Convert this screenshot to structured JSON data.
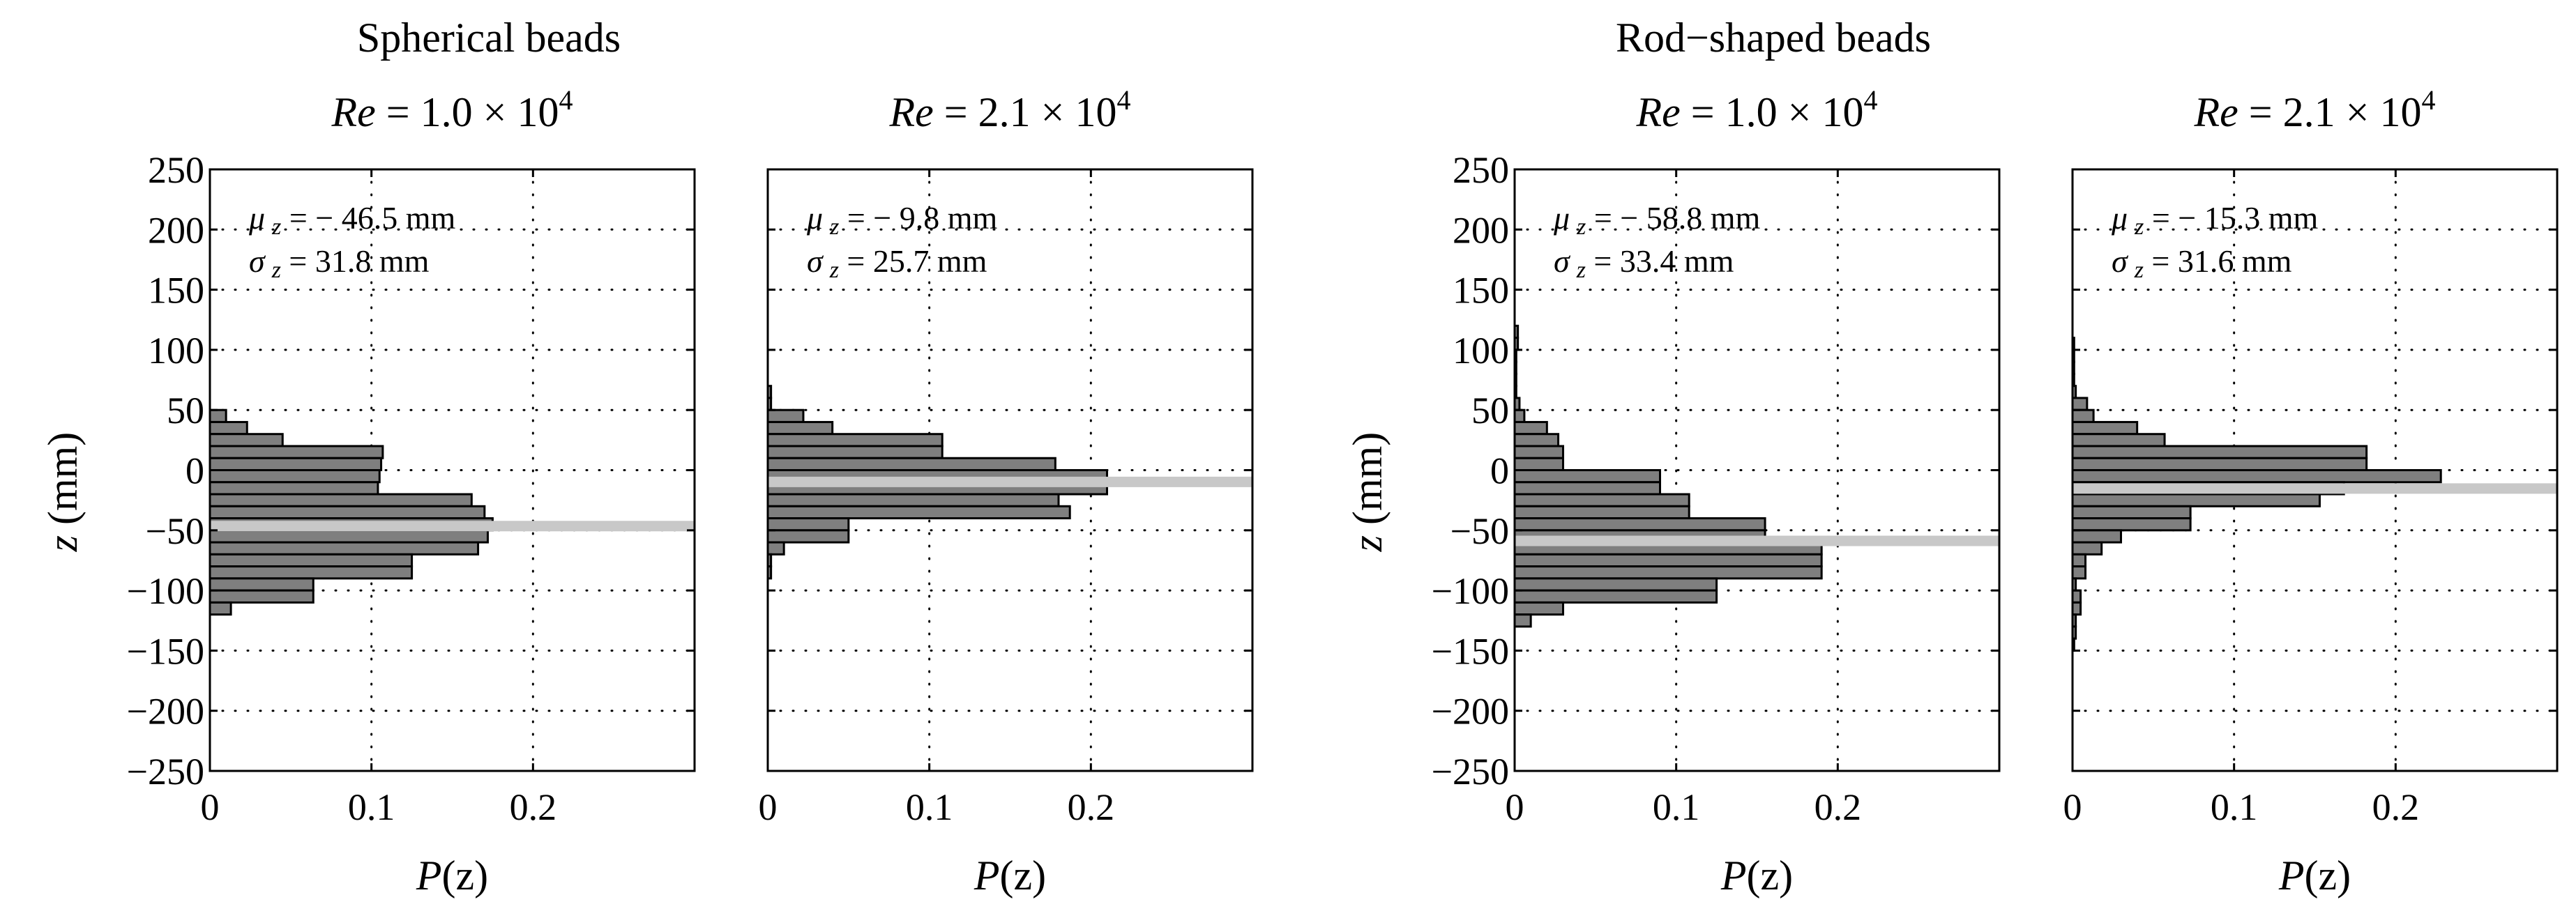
{
  "figure": {
    "group_titles": [
      "Spherical beads",
      "Rod−shaped beads"
    ]
  },
  "chart_data": [
    {
      "type": "bar",
      "orientation": "horizontal",
      "group": "Spherical beads",
      "title_prefix": "Re",
      "title_value": " = 1.0 × 10",
      "title_exp": "4",
      "xlabel_main": "P",
      "xlabel_rest": "(z)",
      "ylabel_main": "z",
      "ylabel_rest": " (mm)",
      "xlim": [
        0,
        0.3
      ],
      "ylim": [
        -250,
        250
      ],
      "xticks": [
        0,
        0.1,
        0.2
      ],
      "xtick_labels": [
        "0",
        "0.1",
        "0.2"
      ],
      "yticks": [
        -250,
        -200,
        -150,
        -100,
        -50,
        0,
        50,
        100,
        150,
        200,
        250
      ],
      "ytick_labels": [
        "−250",
        "−200",
        "−150",
        "−100",
        "−50",
        "0",
        "50",
        "100",
        "150",
        "200",
        "250"
      ],
      "show_yticklabels": true,
      "grid": true,
      "bin_width": 10,
      "bin_centers": [
        45,
        35,
        25,
        15,
        5,
        -5,
        -15,
        -25,
        -35,
        -45,
        -55,
        -65,
        -75,
        -85,
        -95,
        -105,
        -115
      ],
      "values": [
        0.01,
        0.023,
        0.045,
        0.107,
        0.106,
        0.105,
        0.104,
        0.162,
        0.17,
        0.175,
        0.172,
        0.166,
        0.125,
        0.125,
        0.064,
        0.064,
        0.013
      ],
      "mean_line": -46.5,
      "mu_prefix": "μ",
      "mu_sub": "z",
      "mu_text": " = − 46.5 mm",
      "sigma_prefix": "σ",
      "sigma_sub": "z",
      "sigma_text": " = 31.8 mm"
    },
    {
      "type": "bar",
      "orientation": "horizontal",
      "group": "Spherical beads",
      "title_prefix": "Re",
      "title_value": " = 2.1 × 10",
      "title_exp": "4",
      "xlabel_main": "P",
      "xlabel_rest": "(z)",
      "xlim": [
        0,
        0.3
      ],
      "ylim": [
        -250,
        250
      ],
      "xticks": [
        0,
        0.1,
        0.2
      ],
      "xtick_labels": [
        "0",
        "0.1",
        "0.2"
      ],
      "yticks": [
        -250,
        -200,
        -150,
        -100,
        -50,
        0,
        50,
        100,
        150,
        200,
        250
      ],
      "show_yticklabels": false,
      "grid": true,
      "bin_width": 10,
      "bin_centers": [
        65,
        55,
        45,
        35,
        25,
        15,
        5,
        -5,
        -15,
        -25,
        -35,
        -45,
        -55,
        -65,
        -75,
        -85
      ],
      "values": [
        0.002,
        0.002,
        0.022,
        0.04,
        0.108,
        0.108,
        0.178,
        0.21,
        0.21,
        0.18,
        0.187,
        0.05,
        0.05,
        0.01,
        0.002,
        0.002
      ],
      "mean_line": -9.8,
      "mu_prefix": "μ",
      "mu_sub": "z",
      "mu_text": " = − 9.8 mm",
      "sigma_prefix": "σ",
      "sigma_sub": "z",
      "sigma_text": " = 25.7 mm"
    },
    {
      "type": "bar",
      "orientation": "horizontal",
      "group": "Rod−shaped beads",
      "title_prefix": "Re",
      "title_value": " = 1.0 × 10",
      "title_exp": "4",
      "xlabel_main": "P",
      "xlabel_rest": "(z)",
      "ylabel_main": "z",
      "ylabel_rest": " (mm)",
      "xlim": [
        0,
        0.3
      ],
      "ylim": [
        -250,
        250
      ],
      "xticks": [
        0,
        0.1,
        0.2
      ],
      "xtick_labels": [
        "0",
        "0.1",
        "0.2"
      ],
      "yticks": [
        -250,
        -200,
        -150,
        -100,
        -50,
        0,
        50,
        100,
        150,
        200,
        250
      ],
      "ytick_labels": [
        "−250",
        "−200",
        "−150",
        "−100",
        "−50",
        "0",
        "50",
        "100",
        "150",
        "200",
        "250"
      ],
      "show_yticklabels": true,
      "grid": true,
      "bin_width": 10,
      "bin_centers": [
        115,
        105,
        95,
        85,
        75,
        65,
        55,
        45,
        35,
        25,
        15,
        5,
        -5,
        -15,
        -25,
        -35,
        -45,
        -55,
        -65,
        -75,
        -85,
        -95,
        -105,
        -115,
        -125
      ],
      "values": [
        0.002,
        0.002,
        0.001,
        0.001,
        0.001,
        0.001,
        0.003,
        0.006,
        0.02,
        0.027,
        0.03,
        0.03,
        0.09,
        0.09,
        0.108,
        0.108,
        0.155,
        0.155,
        0.19,
        0.19,
        0.19,
        0.125,
        0.125,
        0.03,
        0.01
      ],
      "mean_line": -58.8,
      "mu_prefix": "μ",
      "mu_sub": "z",
      "mu_text": " = − 58.8 mm",
      "sigma_prefix": "σ",
      "sigma_sub": "z",
      "sigma_text": " = 33.4 mm"
    },
    {
      "type": "bar",
      "orientation": "horizontal",
      "group": "Rod−shaped beads",
      "title_prefix": "Re",
      "title_value": " = 2.1 × 10",
      "title_exp": "4",
      "xlabel_main": "P",
      "xlabel_rest": "(z)",
      "xlim": [
        0,
        0.3
      ],
      "ylim": [
        -250,
        250
      ],
      "xticks": [
        0,
        0.1,
        0.2
      ],
      "xtick_labels": [
        "0",
        "0.1",
        "0.2"
      ],
      "yticks": [
        -250,
        -200,
        -150,
        -100,
        -50,
        0,
        50,
        100,
        150,
        200,
        250
      ],
      "show_yticklabels": false,
      "grid": true,
      "bin_width": 10,
      "bin_centers": [
        105,
        95,
        85,
        75,
        65,
        55,
        45,
        35,
        25,
        15,
        5,
        -5,
        -15,
        -25,
        -35,
        -45,
        -55,
        -65,
        -75,
        -85,
        -95,
        -105,
        -115,
        -125,
        -135,
        -145
      ],
      "values": [
        0.001,
        0.001,
        0.001,
        0.001,
        0.002,
        0.009,
        0.013,
        0.04,
        0.057,
        0.182,
        0.182,
        0.228,
        0.168,
        0.153,
        0.073,
        0.073,
        0.03,
        0.018,
        0.008,
        0.008,
        0.002,
        0.005,
        0.005,
        0.002,
        0.002,
        0.001
      ],
      "mean_line": -15.3,
      "mu_prefix": "μ",
      "mu_sub": "z",
      "mu_text": " = − 15.3 mm",
      "sigma_prefix": "σ",
      "sigma_sub": "z",
      "sigma_text": " = 31.6 mm"
    }
  ]
}
